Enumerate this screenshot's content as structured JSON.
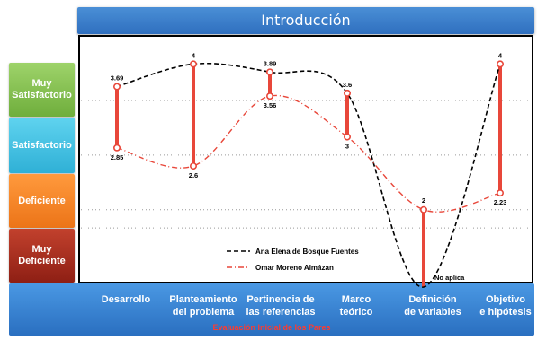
{
  "header": {
    "title": "Introducción"
  },
  "bands": [
    "Muy\nSatisfactorio",
    "Satisfactorio",
    "Deficiente",
    "Muy\nDeficiente"
  ],
  "footer": {
    "title": "Evaluación Inicial de los Pares"
  },
  "chart_data": {
    "type": "line",
    "title": "Introducción",
    "xlabel": "Evaluación Inicial de los Pares",
    "ylabel": "",
    "categories": [
      "Desarrollo",
      "Planteamiento\ndel problema",
      "Pertinencia de\nlas referencias",
      "Marco\nteórico",
      "Definición\nde variables",
      "Objetivo\ne hipótesis"
    ],
    "y_band_labels": [
      "Muy Deficiente",
      "Deficiente",
      "Satisfactorio",
      "Muy Satisfactorio"
    ],
    "ylim": [
      1,
      4
    ],
    "grid": true,
    "legend_position": "bottom-left",
    "series": [
      {
        "name": "Ana Elena de Bosque Fuentes",
        "values": [
          3.69,
          4,
          3.89,
          3.6,
          null,
          4
        ],
        "labels": [
          "3.69",
          "4",
          "3.89",
          "3.6",
          "No aplica",
          "4"
        ],
        "style": "dashed",
        "color": "#000000"
      },
      {
        "name": "Omar Moreno Almázan",
        "values": [
          2.85,
          2.6,
          3.56,
          3,
          2,
          2.23
        ],
        "labels": [
          "2.85",
          "2.6",
          "3.56",
          "3",
          "2",
          "2.23"
        ],
        "style": "dashdot",
        "color": "#e8473a"
      }
    ],
    "range_bar_color": "#e8473a"
  }
}
